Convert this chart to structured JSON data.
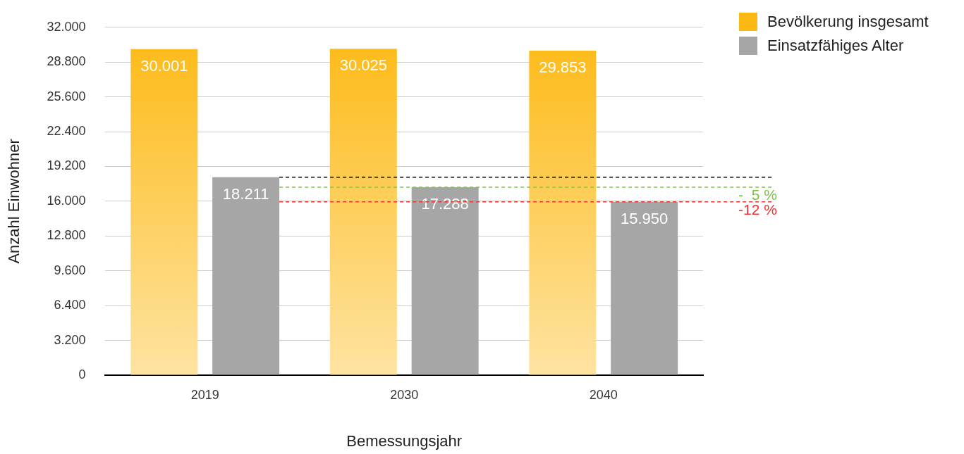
{
  "chart_data": {
    "type": "bar",
    "categories": [
      "2019",
      "2030",
      "2040"
    ],
    "series": [
      {
        "name": "Bevölkerung insgesamt",
        "color": "#fdb913",
        "values": [
          30001,
          30025,
          29853
        ],
        "value_labels": [
          "30.001",
          "30.025",
          "29.853"
        ]
      },
      {
        "name": "Einsatzfähiges Alter",
        "color": "#a6a6a6",
        "values": [
          18211,
          17288,
          15950
        ],
        "value_labels": [
          "18.211",
          "17.288",
          "15.950"
        ]
      }
    ],
    "xlabel": "Bemessungsjahr",
    "ylabel": "Anzahl Einwohner",
    "ylim": [
      0,
      32000
    ],
    "yticks": [
      {
        "value": 0,
        "label": "0"
      },
      {
        "value": 3200,
        "label": "3.200"
      },
      {
        "value": 6400,
        "label": "6.400"
      },
      {
        "value": 9600,
        "label": "9.600"
      },
      {
        "value": 12800,
        "label": "12.800"
      },
      {
        "value": 16000,
        "label": "16.000"
      },
      {
        "value": 19200,
        "label": "19.200"
      },
      {
        "value": 22400,
        "label": "22.400"
      },
      {
        "value": 25600,
        "label": "25.600"
      },
      {
        "value": 28800,
        "label": "28.800"
      },
      {
        "value": 32000,
        "label": "32.000"
      }
    ],
    "ref_lines": [
      {
        "axis": "y",
        "value": 18211,
        "color": "#000000",
        "line_style": "dashed"
      },
      {
        "axis": "y",
        "value": 17288,
        "color": "#7dc242",
        "line_style": "dashed"
      },
      {
        "axis": "y",
        "value": 15950,
        "color": "#ee3333",
        "line_style": "dashed"
      }
    ],
    "annotations": [
      {
        "text": "-  5 %",
        "y": 17288
      },
      {
        "text": "-12 %",
        "y": 15950
      }
    ],
    "grid": "y",
    "legend": "top right"
  }
}
